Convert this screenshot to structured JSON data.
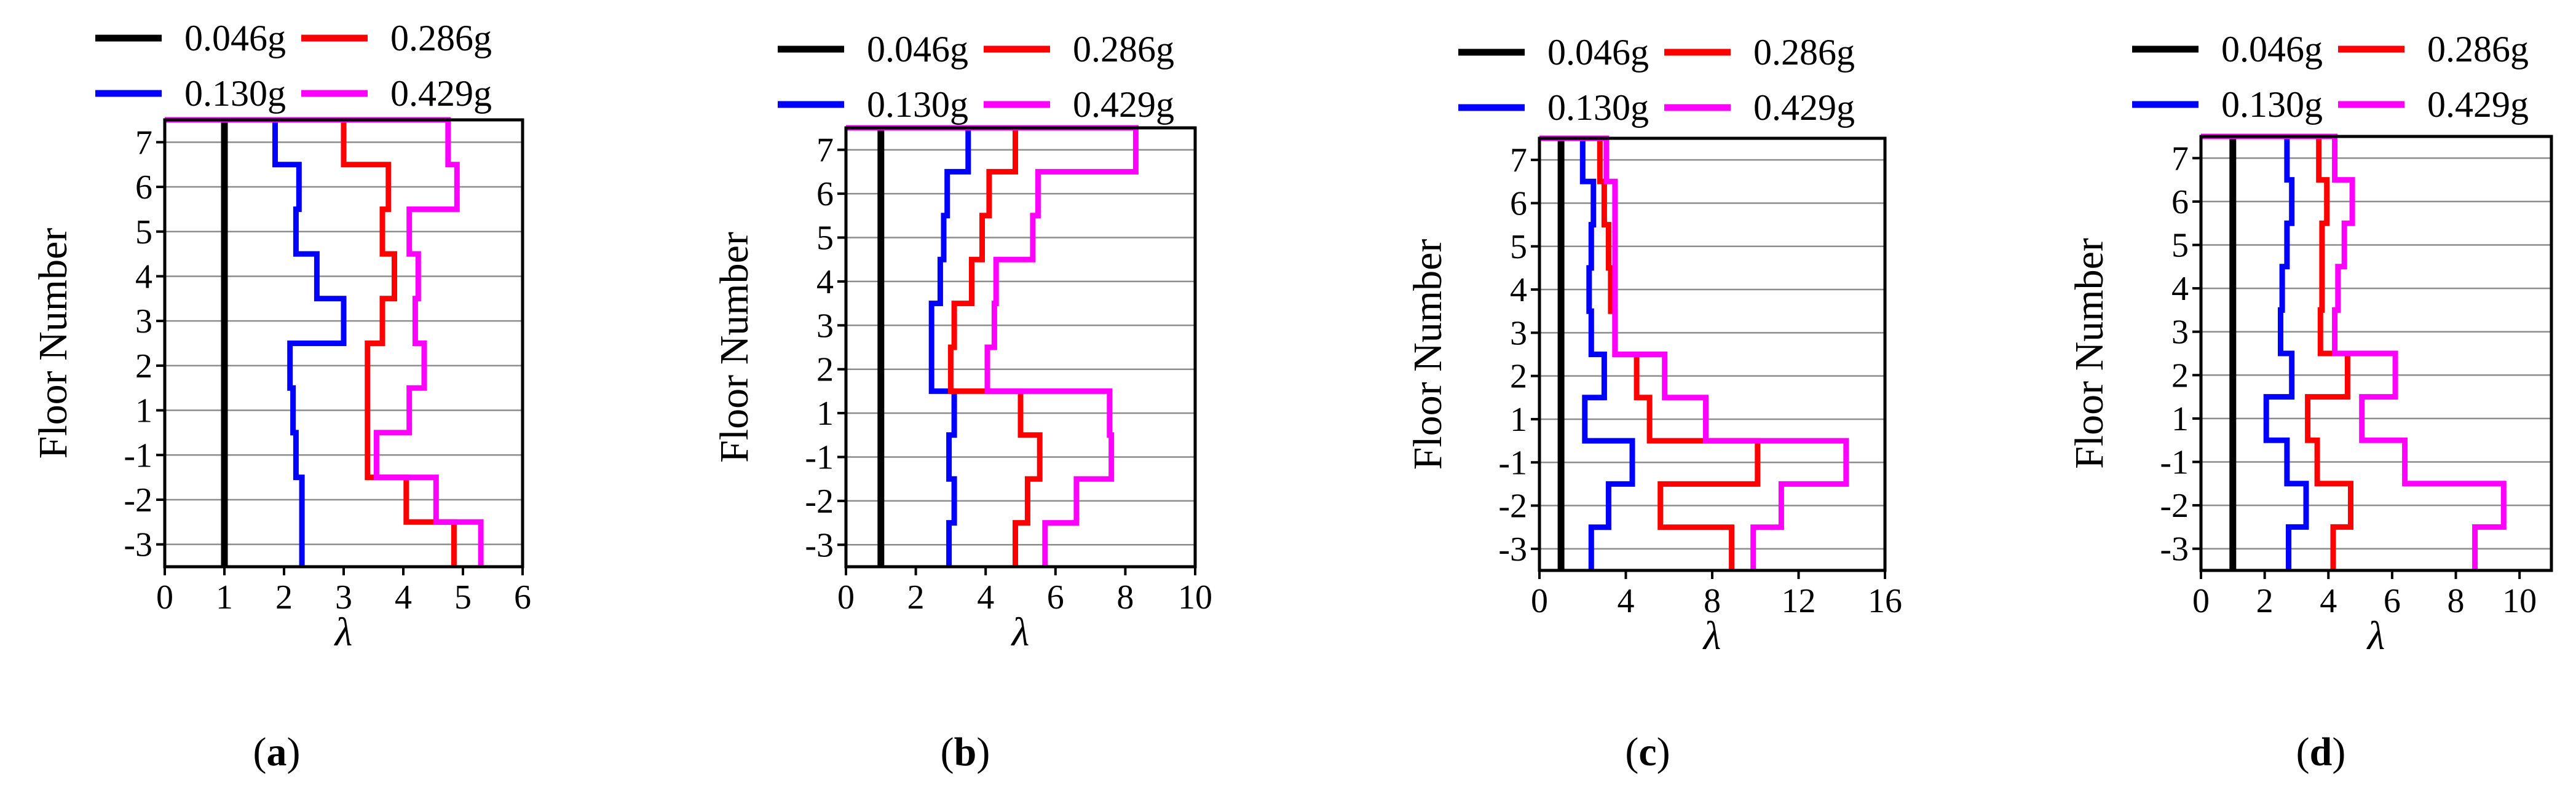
{
  "figure": {
    "floors": [
      "-3",
      "-2",
      "-1",
      "1",
      "2",
      "3",
      "4",
      "5",
      "6",
      "7"
    ],
    "legend": [
      {
        "label": "0.046g",
        "color": "#000000"
      },
      {
        "label": "0.286g",
        "color": "#ff0000"
      },
      {
        "label": "0.130g",
        "color": "#0000ff"
      },
      {
        "label": "0.429g",
        "color": "#ff00ff"
      }
    ],
    "ylabel": "Floor Number",
    "xlabel": "λ"
  },
  "chart_data": [
    {
      "type": "line",
      "panel": "(a)",
      "caption_letter": "a",
      "title": "",
      "xlabel": "λ",
      "ylabel": "Floor Number",
      "xlim": [
        0,
        6
      ],
      "xticks": [
        "0",
        "1",
        "2",
        "3",
        "4",
        "5",
        "6"
      ],
      "floors": [
        "-3",
        "-2",
        "-1",
        "1",
        "2",
        "3",
        "4",
        "5",
        "6",
        "7"
      ],
      "grid": "horizontal",
      "series": [
        {
          "name": "0.046g",
          "color": "#000000",
          "values": [
            1.0,
            1.0,
            1.0,
            1.0,
            1.0,
            1.0,
            1.0,
            1.0,
            1.0,
            1.0
          ]
        },
        {
          "name": "0.130g",
          "color": "#0000ff",
          "values": [
            2.3,
            2.3,
            2.2,
            2.15,
            2.1,
            3.0,
            2.55,
            2.2,
            2.25,
            1.85
          ]
        },
        {
          "name": "0.286g",
          "color": "#ff0000",
          "values": [
            4.85,
            4.05,
            3.4,
            3.4,
            3.4,
            3.65,
            3.85,
            3.65,
            3.75,
            3.0
          ]
        },
        {
          "name": "0.429g",
          "color": "#ff00ff",
          "values": [
            5.3,
            4.55,
            3.55,
            4.1,
            4.35,
            4.2,
            4.25,
            4.1,
            4.9,
            4.75
          ]
        }
      ]
    },
    {
      "type": "line",
      "panel": "(b)",
      "caption_letter": "b",
      "title": "",
      "xlabel": "λ",
      "ylabel": "Floor Number",
      "xlim": [
        0,
        10
      ],
      "xticks": [
        "0",
        "2",
        "4",
        "6",
        "8",
        "10"
      ],
      "floors": [
        "-3",
        "-2",
        "-1",
        "1",
        "2",
        "3",
        "4",
        "5",
        "6",
        "7"
      ],
      "grid": "horizontal",
      "series": [
        {
          "name": "0.046g",
          "color": "#000000",
          "values": [
            1.0,
            1.0,
            1.0,
            1.0,
            1.0,
            1.0,
            1.0,
            1.0,
            1.0,
            1.0
          ]
        },
        {
          "name": "0.130g",
          "color": "#0000ff",
          "values": [
            2.95,
            3.1,
            2.95,
            3.1,
            2.45,
            2.45,
            2.7,
            2.8,
            2.9,
            3.5
          ]
        },
        {
          "name": "0.286g",
          "color": "#ff0000",
          "values": [
            4.85,
            5.2,
            5.55,
            5.0,
            3.0,
            3.1,
            3.6,
            3.9,
            4.1,
            4.85
          ]
        },
        {
          "name": "0.429g",
          "color": "#ff00ff",
          "values": [
            5.7,
            6.6,
            7.6,
            7.55,
            4.05,
            4.25,
            4.3,
            5.35,
            5.5,
            8.3
          ]
        }
      ]
    },
    {
      "type": "line",
      "panel": "(c)",
      "caption_letter": "c",
      "title": "",
      "xlabel": "λ",
      "ylabel": "Floor Number",
      "xlim": [
        0,
        16
      ],
      "xticks": [
        "0",
        "4",
        "8",
        "12",
        "16"
      ],
      "floors": [
        "-3",
        "-2",
        "-1",
        "1",
        "2",
        "3",
        "4",
        "5",
        "6",
        "7"
      ],
      "grid": "horizontal",
      "series": [
        {
          "name": "0.046g",
          "color": "#000000",
          "values": [
            1.0,
            1.0,
            1.0,
            1.0,
            1.0,
            1.0,
            1.0,
            1.0,
            1.0,
            1.0
          ]
        },
        {
          "name": "0.130g",
          "color": "#0000ff",
          "values": [
            2.4,
            3.2,
            4.3,
            2.1,
            3.0,
            2.4,
            2.3,
            2.4,
            2.5,
            2.0
          ]
        },
        {
          "name": "0.286g",
          "color": "#ff0000",
          "values": [
            8.9,
            5.6,
            10.1,
            5.1,
            4.5,
            3.5,
            3.3,
            3.2,
            3.0,
            2.8
          ]
        },
        {
          "name": "0.429g",
          "color": "#ff00ff",
          "values": [
            9.9,
            11.2,
            14.2,
            7.7,
            5.8,
            3.5,
            3.5,
            3.5,
            3.5,
            3.1
          ]
        }
      ]
    },
    {
      "type": "line",
      "panel": "(d)",
      "caption_letter": "d",
      "title": "",
      "xlabel": "λ",
      "ylabel": "Floor Number",
      "xlim": [
        0,
        11
      ],
      "xticks": [
        "0",
        "2",
        "4",
        "6",
        "8",
        "10"
      ],
      "floors": [
        "-3",
        "-2",
        "-1",
        "1",
        "2",
        "3",
        "4",
        "5",
        "6",
        "7"
      ],
      "grid": "horizontal",
      "series": [
        {
          "name": "0.046g",
          "color": "#000000",
          "values": [
            1.0,
            1.0,
            1.0,
            1.0,
            1.0,
            1.0,
            1.0,
            1.0,
            1.0,
            1.0
          ]
        },
        {
          "name": "0.130g",
          "color": "#0000ff",
          "values": [
            2.75,
            3.3,
            2.7,
            2.05,
            2.85,
            2.5,
            2.55,
            2.7,
            2.85,
            2.7
          ]
        },
        {
          "name": "0.286g",
          "color": "#ff0000",
          "values": [
            4.15,
            4.7,
            3.65,
            3.35,
            4.6,
            3.75,
            3.8,
            3.8,
            3.95,
            3.7
          ]
        },
        {
          "name": "0.429g",
          "color": "#ff00ff",
          "values": [
            8.6,
            9.5,
            6.4,
            5.05,
            6.1,
            4.2,
            4.3,
            4.5,
            4.75,
            4.2
          ]
        }
      ]
    }
  ]
}
